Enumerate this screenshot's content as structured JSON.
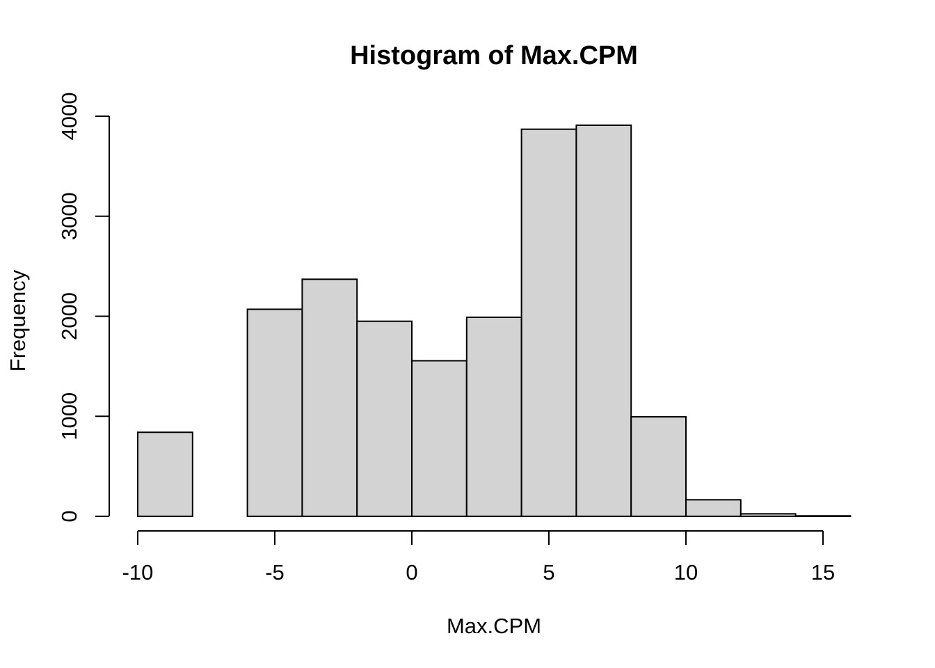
{
  "chart_data": {
    "type": "bar",
    "title": "Histogram of Max.CPM",
    "xlabel": "Max.CPM",
    "ylabel": "Frequency",
    "bins": [
      {
        "start": -10,
        "end": -8,
        "count": 840
      },
      {
        "start": -8,
        "end": -6,
        "count": 0
      },
      {
        "start": -6,
        "end": -4,
        "count": 2070
      },
      {
        "start": -4,
        "end": -2,
        "count": 2370
      },
      {
        "start": -2,
        "end": 0,
        "count": 1950
      },
      {
        "start": 0,
        "end": 2,
        "count": 1555
      },
      {
        "start": 2,
        "end": 4,
        "count": 1990
      },
      {
        "start": 4,
        "end": 6,
        "count": 3870
      },
      {
        "start": 6,
        "end": 8,
        "count": 3910
      },
      {
        "start": 8,
        "end": 10,
        "count": 995
      },
      {
        "start": 10,
        "end": 12,
        "count": 165
      },
      {
        "start": 12,
        "end": 14,
        "count": 25
      },
      {
        "start": 14,
        "end": 16,
        "count": 5
      }
    ],
    "xlim": [
      -10,
      16
    ],
    "ylim": [
      0,
      4000
    ],
    "x_ticks": [
      -10,
      -5,
      0,
      5,
      10,
      15
    ],
    "x_tick_labels": [
      "-10",
      "-5",
      "0",
      "5",
      "10",
      "15"
    ],
    "y_ticks": [
      0,
      1000,
      2000,
      3000,
      4000
    ],
    "y_tick_labels": [
      "0",
      "1000",
      "2000",
      "3000",
      "4000"
    ],
    "grid": false,
    "legend": "none",
    "bar_fill": "#d3d3d3",
    "bar_stroke": "#000000"
  }
}
